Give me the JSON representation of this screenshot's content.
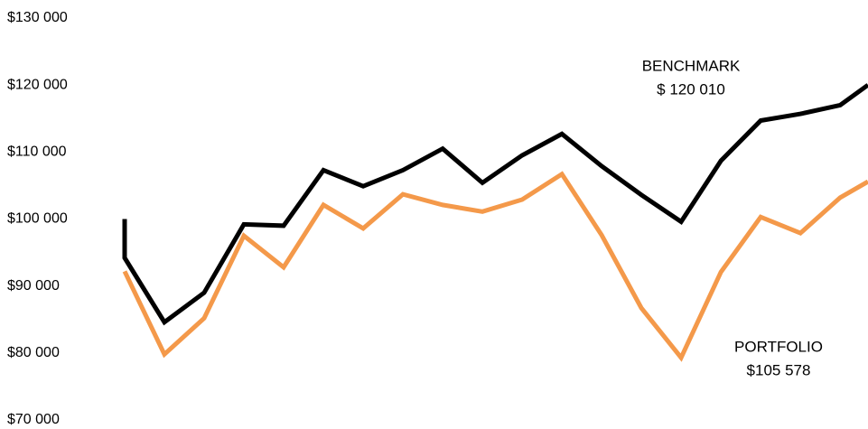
{
  "chart_data": {
    "type": "line",
    "ylim": [
      70000,
      130000
    ],
    "yticks": [
      {
        "value": 70000,
        "label": "$70 000"
      },
      {
        "value": 80000,
        "label": "$80 000"
      },
      {
        "value": 90000,
        "label": "$90 000"
      },
      {
        "value": 100000,
        "label": "$100 000"
      },
      {
        "value": 110000,
        "label": "$110 000"
      },
      {
        "value": 120000,
        "label": "$120 000"
      },
      {
        "value": 130000,
        "label": "$130 000"
      }
    ],
    "xlim": [
      0,
      18.7
    ],
    "grid": false,
    "series": [
      {
        "name": "BENCHMARK",
        "color": "#000000",
        "x": [
          0,
          0,
          1,
          2,
          3,
          4,
          5,
          6,
          7,
          8,
          9,
          10,
          11,
          12,
          13,
          14,
          15,
          16,
          17,
          18,
          18.7
        ],
        "values": [
          100000,
          94200,
          84600,
          89000,
          99200,
          99000,
          107300,
          104900,
          107300,
          110500,
          105400,
          109500,
          112700,
          107900,
          103600,
          99600,
          108700,
          114700,
          115700,
          117000,
          120010
        ],
        "value_label": "$ 120 010"
      },
      {
        "name": "PORTFOLIO",
        "color": "#f4994a",
        "x": [
          0,
          1,
          2,
          3,
          4,
          5,
          6,
          7,
          8,
          9,
          10,
          11,
          12,
          13,
          14,
          15,
          16,
          17,
          18,
          18.7
        ],
        "values": [
          92200,
          79800,
          85200,
          97500,
          92800,
          102100,
          98600,
          103700,
          102100,
          101100,
          102900,
          106700,
          97600,
          86700,
          79300,
          92100,
          100300,
          97900,
          103200,
          105578
        ],
        "value_label": "$105 578"
      }
    ]
  }
}
